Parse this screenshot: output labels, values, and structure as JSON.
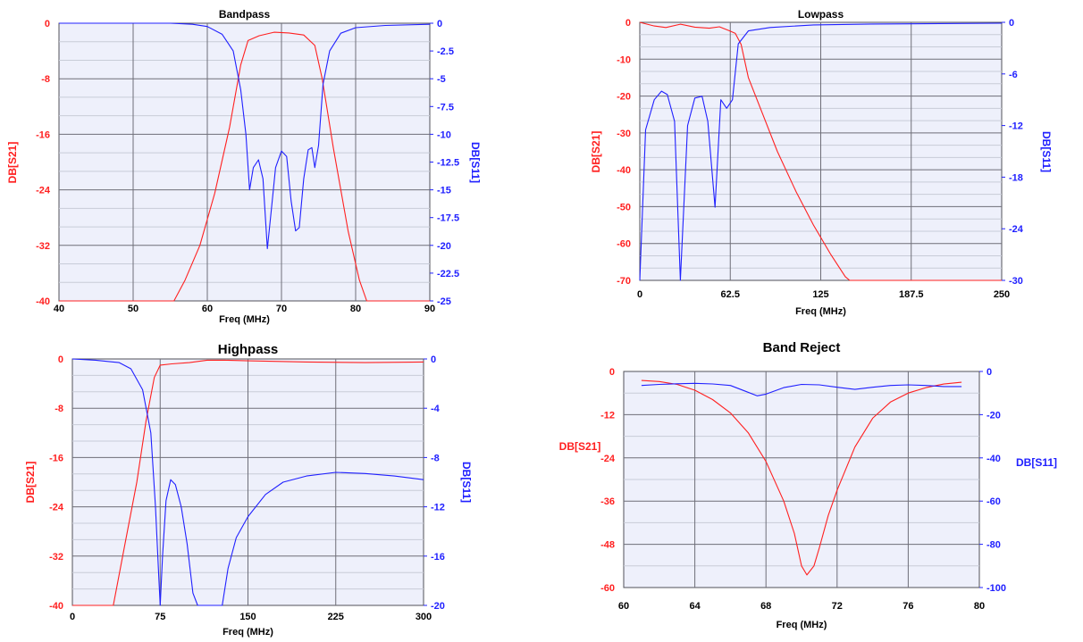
{
  "colors": {
    "s21": "#ff2020",
    "s11": "#2020ff",
    "plot_bg": "#eef0fb",
    "grid_major": "#6e6e78",
    "grid_minor": "#c8ccd8"
  },
  "chart_data": [
    {
      "type": "line",
      "title": "Bandpass",
      "xlabel": "Freq (MHz)",
      "ylabel_left": "DB[S21]",
      "ylabel_right": "DB[S11]",
      "xlim": [
        40,
        90
      ],
      "ylim_left": [
        -40,
        0
      ],
      "ylim_right": [
        -25,
        0
      ],
      "x_ticks": [
        "40",
        "50",
        "60",
        "70",
        "80",
        "90"
      ],
      "left_ticks": [
        "0",
        "-8",
        "-16",
        "-24",
        "-32",
        "-40"
      ],
      "right_ticks": [
        "0",
        "-2.5",
        "-5",
        "-7.5",
        "-10",
        "-12.5",
        "-15",
        "-17.5",
        "-20",
        "-22.5",
        "-25"
      ],
      "series": [
        {
          "name": "DB[S21]",
          "axis": "left",
          "points": [
            [
              40,
              -40
            ],
            [
              55.5,
              -40
            ],
            [
              57,
              -37
            ],
            [
              59,
              -32
            ],
            [
              61,
              -24.5
            ],
            [
              63,
              -15
            ],
            [
              64.5,
              -6
            ],
            [
              65.5,
              -2.5
            ],
            [
              67,
              -1.8
            ],
            [
              69,
              -1.3
            ],
            [
              71,
              -1.4
            ],
            [
              73,
              -1.7
            ],
            [
              74.5,
              -3.2
            ],
            [
              75.5,
              -8
            ],
            [
              77,
              -18
            ],
            [
              79,
              -30
            ],
            [
              80.5,
              -37
            ],
            [
              81.5,
              -40
            ],
            [
              90,
              -40
            ]
          ]
        },
        {
          "name": "DB[S11]",
          "axis": "right",
          "points": [
            [
              40,
              0
            ],
            [
              55,
              0
            ],
            [
              58,
              -0.1
            ],
            [
              60,
              -0.3
            ],
            [
              62,
              -1
            ],
            [
              63.5,
              -2.5
            ],
            [
              64.5,
              -6
            ],
            [
              65.2,
              -10
            ],
            [
              65.7,
              -15
            ],
            [
              66.2,
              -13
            ],
            [
              66.9,
              -12.3
            ],
            [
              67.5,
              -14
            ],
            [
              68.1,
              -20.3
            ],
            [
              68.6,
              -17
            ],
            [
              69.2,
              -13
            ],
            [
              70,
              -11.5
            ],
            [
              70.7,
              -12
            ],
            [
              71.3,
              -16
            ],
            [
              71.9,
              -18.7
            ],
            [
              72.4,
              -18.4
            ],
            [
              73,
              -14
            ],
            [
              73.6,
              -11.4
            ],
            [
              74.1,
              -11.2
            ],
            [
              74.5,
              -13
            ],
            [
              75,
              -11
            ],
            [
              75.6,
              -5.5
            ],
            [
              76.5,
              -2.5
            ],
            [
              78,
              -0.9
            ],
            [
              80,
              -0.4
            ],
            [
              84,
              -0.2
            ],
            [
              90,
              -0.1
            ]
          ]
        }
      ]
    },
    {
      "type": "line",
      "title": "Lowpass",
      "xlabel": "Freq (MHz)",
      "ylabel_left": "DB[S21]",
      "ylabel_right": "DB[S11]",
      "xlim": [
        0,
        250
      ],
      "ylim_left": [
        -70,
        0
      ],
      "ylim_right": [
        -30,
        0
      ],
      "x_ticks": [
        "0",
        "62.5",
        "125",
        "187.5",
        "250"
      ],
      "left_ticks": [
        "0",
        "-10",
        "-20",
        "-30",
        "-40",
        "-50",
        "-60",
        "-70"
      ],
      "right_ticks": [
        "0",
        "-6",
        "-12",
        "-18",
        "-24",
        "-30"
      ],
      "series": [
        {
          "name": "DB[S21]",
          "axis": "left",
          "points": [
            [
              0,
              0
            ],
            [
              10,
              -1
            ],
            [
              18,
              -1.4
            ],
            [
              28,
              -0.5
            ],
            [
              38,
              -1.3
            ],
            [
              48,
              -1.6
            ],
            [
              55,
              -1.2
            ],
            [
              62,
              -2.3
            ],
            [
              66,
              -3
            ],
            [
              70,
              -6
            ],
            [
              75,
              -15
            ],
            [
              85,
              -25
            ],
            [
              95,
              -35
            ],
            [
              108,
              -46
            ],
            [
              120,
              -55
            ],
            [
              132,
              -63
            ],
            [
              142,
              -69
            ],
            [
              145,
              -70
            ],
            [
              250,
              -70
            ]
          ]
        },
        {
          "name": "DB[S11]",
          "axis": "right",
          "points": [
            [
              0,
              -30
            ],
            [
              4,
              -12.5
            ],
            [
              10,
              -9
            ],
            [
              15,
              -8
            ],
            [
              19,
              -8.4
            ],
            [
              24,
              -11.5
            ],
            [
              28,
              -30
            ],
            [
              33,
              -12
            ],
            [
              38,
              -8.8
            ],
            [
              43,
              -8.6
            ],
            [
              47,
              -11.5
            ],
            [
              52,
              -21.5
            ],
            [
              56,
              -9
            ],
            [
              60,
              -10
            ],
            [
              64,
              -9
            ],
            [
              68,
              -2.5
            ],
            [
              75,
              -1
            ],
            [
              90,
              -0.6
            ],
            [
              120,
              -0.3
            ],
            [
              160,
              -0.2
            ],
            [
              250,
              -0.1
            ]
          ]
        }
      ]
    },
    {
      "type": "line",
      "title": "Highpass",
      "xlabel": "Freq (MHz)",
      "ylabel_left": "DB[S21]",
      "ylabel_right": "DB[S11]",
      "xlim": [
        0,
        300
      ],
      "ylim_left": [
        -40,
        0
      ],
      "ylim_right": [
        -20,
        0
      ],
      "x_ticks": [
        "0",
        "75",
        "150",
        "225",
        "300"
      ],
      "left_ticks": [
        "0",
        "-8",
        "-16",
        "-24",
        "-32",
        "-40"
      ],
      "right_ticks": [
        "0",
        "-4",
        "-8",
        "-12",
        "-16",
        "-20"
      ],
      "series": [
        {
          "name": "DB[S21]",
          "axis": "left",
          "points": [
            [
              0,
              -40
            ],
            [
              35,
              -40
            ],
            [
              45,
              -30
            ],
            [
              55,
              -20
            ],
            [
              63,
              -10
            ],
            [
              70,
              -3
            ],
            [
              75,
              -1
            ],
            [
              85,
              -0.8
            ],
            [
              100,
              -0.6
            ],
            [
              115,
              -0.2
            ],
            [
              130,
              -0.2
            ],
            [
              150,
              -0.3
            ],
            [
              200,
              -0.5
            ],
            [
              250,
              -0.6
            ],
            [
              300,
              -0.5
            ]
          ]
        },
        {
          "name": "DB[S11]",
          "axis": "right",
          "points": [
            [
              0,
              0
            ],
            [
              20,
              -0.1
            ],
            [
              40,
              -0.3
            ],
            [
              50,
              -0.8
            ],
            [
              60,
              -2.5
            ],
            [
              67,
              -6
            ],
            [
              71,
              -12
            ],
            [
              74,
              -18
            ],
            [
              75,
              -20
            ],
            [
              77,
              -16
            ],
            [
              80,
              -11.5
            ],
            [
              84,
              -9.8
            ],
            [
              88,
              -10.2
            ],
            [
              93,
              -12
            ],
            [
              98,
              -15
            ],
            [
              103,
              -19
            ],
            [
              107,
              -20
            ],
            [
              128,
              -20
            ],
            [
              133,
              -17
            ],
            [
              140,
              -14.5
            ],
            [
              150,
              -12.8
            ],
            [
              165,
              -11
            ],
            [
              180,
              -10
            ],
            [
              200,
              -9.5
            ],
            [
              225,
              -9.2
            ],
            [
              250,
              -9.3
            ],
            [
              275,
              -9.5
            ],
            [
              300,
              -9.8
            ]
          ]
        }
      ]
    },
    {
      "type": "line",
      "title": "Band Reject",
      "xlabel": "Freq (MHz)",
      "ylabel_left": "DB[S21]",
      "ylabel_right": "DB[S11]",
      "xlim": [
        60,
        80
      ],
      "ylim_left": [
        -60,
        0
      ],
      "ylim_right": [
        -100,
        0
      ],
      "x_ticks": [
        "60",
        "64",
        "68",
        "72",
        "76",
        "80"
      ],
      "left_ticks": [
        "0",
        "-12",
        "-24",
        "-36",
        "-48",
        "-60"
      ],
      "right_ticks": [
        "0",
        "-20",
        "-40",
        "-60",
        "-80",
        "-100"
      ],
      "series": [
        {
          "name": "DB[S21]",
          "axis": "left",
          "points": [
            [
              61,
              -2.5
            ],
            [
              62,
              -2.8
            ],
            [
              63,
              -3.6
            ],
            [
              64,
              -5.2
            ],
            [
              65,
              -7.8
            ],
            [
              66,
              -11.5
            ],
            [
              67,
              -17
            ],
            [
              68,
              -25
            ],
            [
              69,
              -36
            ],
            [
              69.6,
              -45
            ],
            [
              70,
              -54
            ],
            [
              70.3,
              -56.5
            ],
            [
              70.7,
              -54
            ],
            [
              71,
              -49
            ],
            [
              71.5,
              -40
            ],
            [
              72,
              -33
            ],
            [
              73,
              -21
            ],
            [
              74,
              -13
            ],
            [
              75,
              -8.5
            ],
            [
              76,
              -6
            ],
            [
              77,
              -4.5
            ],
            [
              78,
              -3.5
            ],
            [
              79,
              -3
            ]
          ]
        },
        {
          "name": "DB[S11]",
          "axis": "right",
          "points": [
            [
              61,
              -6.5
            ],
            [
              62,
              -6
            ],
            [
              63,
              -5.7
            ],
            [
              64,
              -5.5
            ],
            [
              65,
              -5.8
            ],
            [
              66,
              -6.5
            ],
            [
              66.8,
              -9
            ],
            [
              67.5,
              -11.3
            ],
            [
              68,
              -10.5
            ],
            [
              69,
              -7.5
            ],
            [
              70,
              -6
            ],
            [
              71,
              -6.2
            ],
            [
              72,
              -7.3
            ],
            [
              73,
              -8.3
            ],
            [
              74,
              -7.3
            ],
            [
              75,
              -6.5
            ],
            [
              76,
              -6.2
            ],
            [
              77,
              -6.5
            ],
            [
              78,
              -7
            ],
            [
              79,
              -7
            ]
          ]
        }
      ]
    }
  ]
}
